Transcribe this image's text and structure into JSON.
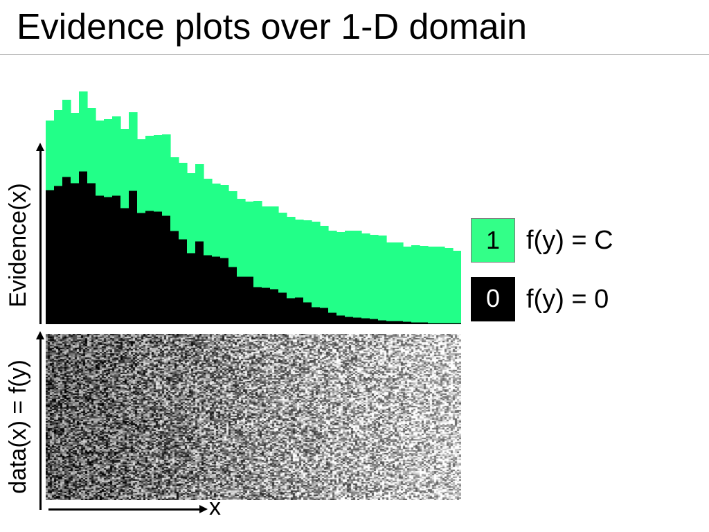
{
  "slide": {
    "title": "Evidence plots over 1-D domain"
  },
  "axes": {
    "evidence_label": "Evidence(x)",
    "data_label": "data(x) = f(y)",
    "x_label": "x"
  },
  "legend": [
    {
      "symbol": "1",
      "text": "f(y) = C",
      "color": "#33ff88"
    },
    {
      "symbol": "0",
      "text": "f(y) = 0",
      "color": "#000000"
    }
  ],
  "colors": {
    "green": "#22ff88",
    "black": "#000000"
  },
  "chart_data": [
    {
      "type": "bar",
      "stacked": true,
      "title": "",
      "xlabel": "",
      "ylabel": "Evidence(x)",
      "ylim": [
        0,
        340
      ],
      "grid": false,
      "legend_position": "right",
      "bins": 50,
      "series": [
        {
          "name": "f(y) = 0",
          "color": "#000000",
          "values": [
            194,
            200,
            213,
            204,
            221,
            204,
            186,
            184,
            186,
            168,
            193,
            161,
            164,
            163,
            157,
            135,
            123,
            103,
            120,
            100,
            98,
            96,
            83,
            69,
            69,
            54,
            53,
            51,
            46,
            38,
            39,
            32,
            25,
            24,
            17,
            13,
            11,
            10,
            9,
            8,
            6,
            5,
            5,
            4,
            3,
            3,
            2,
            2,
            2,
            2
          ]
        },
        {
          "name": "f(y) = C",
          "color": "#22ff88",
          "values": [
            100,
            109,
            111,
            101,
            115,
            108,
            108,
            112,
            114,
            114,
            113,
            106,
            108,
            110,
            117,
            106,
            110,
            115,
            111,
            110,
            105,
            105,
            109,
            112,
            108,
            124,
            117,
            119,
            115,
            117,
            112,
            118,
            123,
            118,
            118,
            120,
            124,
            125,
            122,
            121,
            122,
            113,
            113,
            108,
            111,
            110,
            110,
            110,
            108,
            104
          ]
        }
      ]
    },
    {
      "type": "heatmap",
      "title": "",
      "xlabel": "x",
      "ylabel": "data(x) = f(y)",
      "colormap": "grayscale",
      "columns": 50,
      "trend": "darker (more zeros) on the left, lighter on the right",
      "dark_fraction_by_column": [
        0.66,
        0.65,
        0.64,
        0.63,
        0.62,
        0.61,
        0.6,
        0.59,
        0.58,
        0.57,
        0.56,
        0.55,
        0.54,
        0.53,
        0.52,
        0.51,
        0.5,
        0.49,
        0.48,
        0.47,
        0.46,
        0.45,
        0.44,
        0.43,
        0.42,
        0.41,
        0.4,
        0.39,
        0.38,
        0.37,
        0.36,
        0.35,
        0.34,
        0.33,
        0.32,
        0.31,
        0.3,
        0.29,
        0.28,
        0.27,
        0.26,
        0.25,
        0.24,
        0.23,
        0.22,
        0.21,
        0.2,
        0.19,
        0.18,
        0.17
      ]
    }
  ]
}
